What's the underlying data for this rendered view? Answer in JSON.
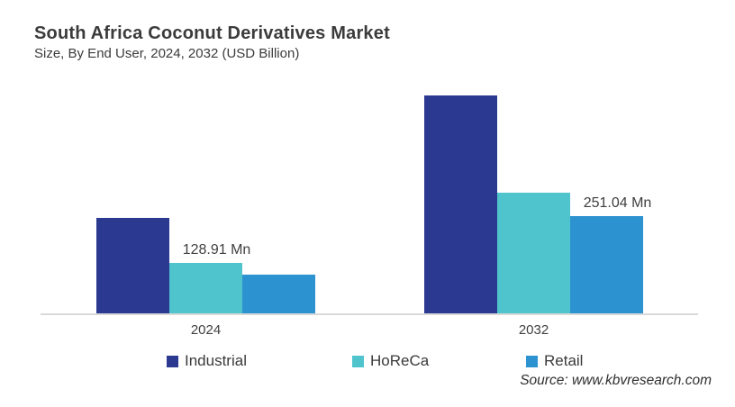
{
  "header": {
    "title": "South Africa Coconut Derivatives Market",
    "subtitle": "Size, By End User, 2024, 2032 (USD Billion)"
  },
  "chart_data": {
    "type": "bar",
    "title": "South Africa Coconut Derivatives Market",
    "subtitle": "Size, By End User, 2024, 2032 (USD Billion)",
    "unit": "Mn",
    "categories": [
      "2024",
      "2032"
    ],
    "series": [
      {
        "name": "Industrial",
        "color": "#2B3991",
        "values": [
          245,
          560
        ],
        "labels": [
          "",
          ""
        ]
      },
      {
        "name": "HoReCa",
        "color": "#4FC4CD",
        "values": [
          128.91,
          310
        ],
        "labels": [
          "128.91 Mn",
          ""
        ]
      },
      {
        "name": "Retail",
        "color": "#2D92D0",
        "values": [
          100,
          251.04
        ],
        "labels": [
          "",
          "251.04 Mn"
        ]
      }
    ],
    "labeled_values": [
      "128.91 Mn",
      "251.04 Mn"
    ],
    "values_note": "Only HoReCa 2024 and Retail 2032 carry data labels; other values estimated from bar heights",
    "ylim": [
      0,
      580
    ],
    "grid": false,
    "legend_position": "bottom",
    "axis_line_color": "#D9D9D9"
  },
  "footer": {
    "source": "Source: www.kbvresearch.com"
  }
}
